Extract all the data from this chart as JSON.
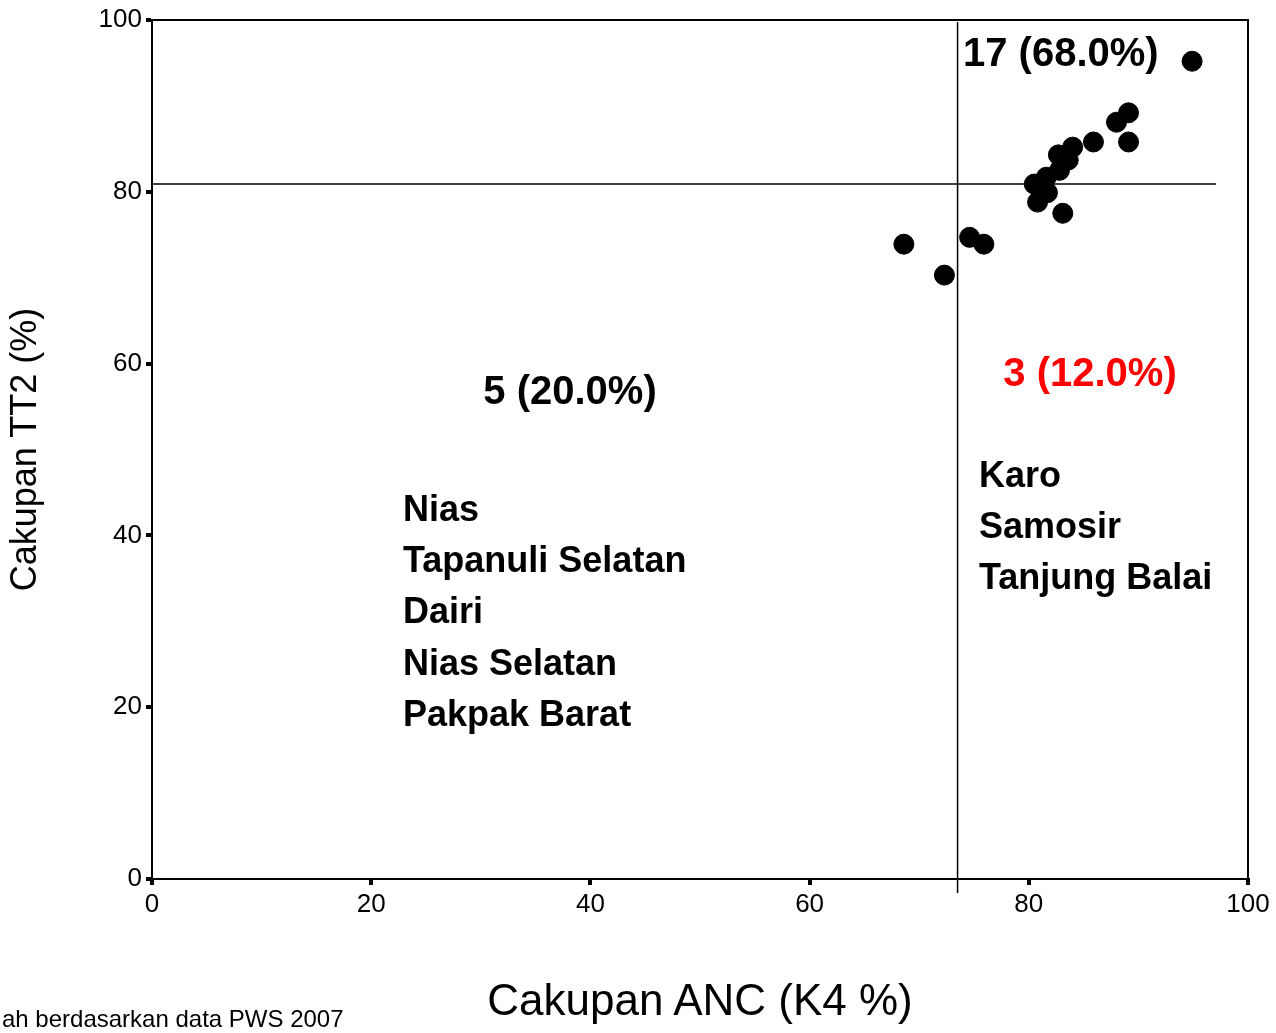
{
  "chart_data": {
    "type": "scatter",
    "xlabel": "Cakupan ANC (K4 %)",
    "ylabel": "Cakupan TT2 (%)",
    "x": [
      68.6,
      72.3,
      74.6,
      75.9,
      80.5,
      81.6,
      80.8,
      81.7,
      83.1,
      82.8,
      82.7,
      83.6,
      84.0,
      85.9,
      88.0,
      89.1,
      89.1,
      94.9
    ],
    "values": [
      73.9,
      70.3,
      74.7,
      73.9,
      80.9,
      81.7,
      78.8,
      79.9,
      77.5,
      82.5,
      84.3,
      83.7,
      85.2,
      85.8,
      88.1,
      89.2,
      85.8,
      95.2
    ],
    "color": "#000000",
    "marker": "circle",
    "xlim": [
      0,
      100
    ],
    "xticks": [
      0,
      20,
      40,
      60,
      80,
      100
    ],
    "ylim": [
      0,
      100
    ],
    "yticks": [
      0,
      20,
      40,
      60,
      80,
      100
    ],
    "ref_lines": [
      {
        "axis": "x",
        "value": 73.5
      },
      {
        "axis": "y",
        "value": 80.9
      }
    ],
    "annotations": [
      "17 (68.0%)",
      "5 (20.0%)",
      "3 (12.0%)",
      "Nias",
      "Tapanuli Selatan",
      "Dairi",
      "Nias Selatan",
      "Pakpak Barat",
      "Karo",
      "Samosir",
      "Tanjung Balai",
      "ah berdasarkan data PWS 2007"
    ]
  }
}
